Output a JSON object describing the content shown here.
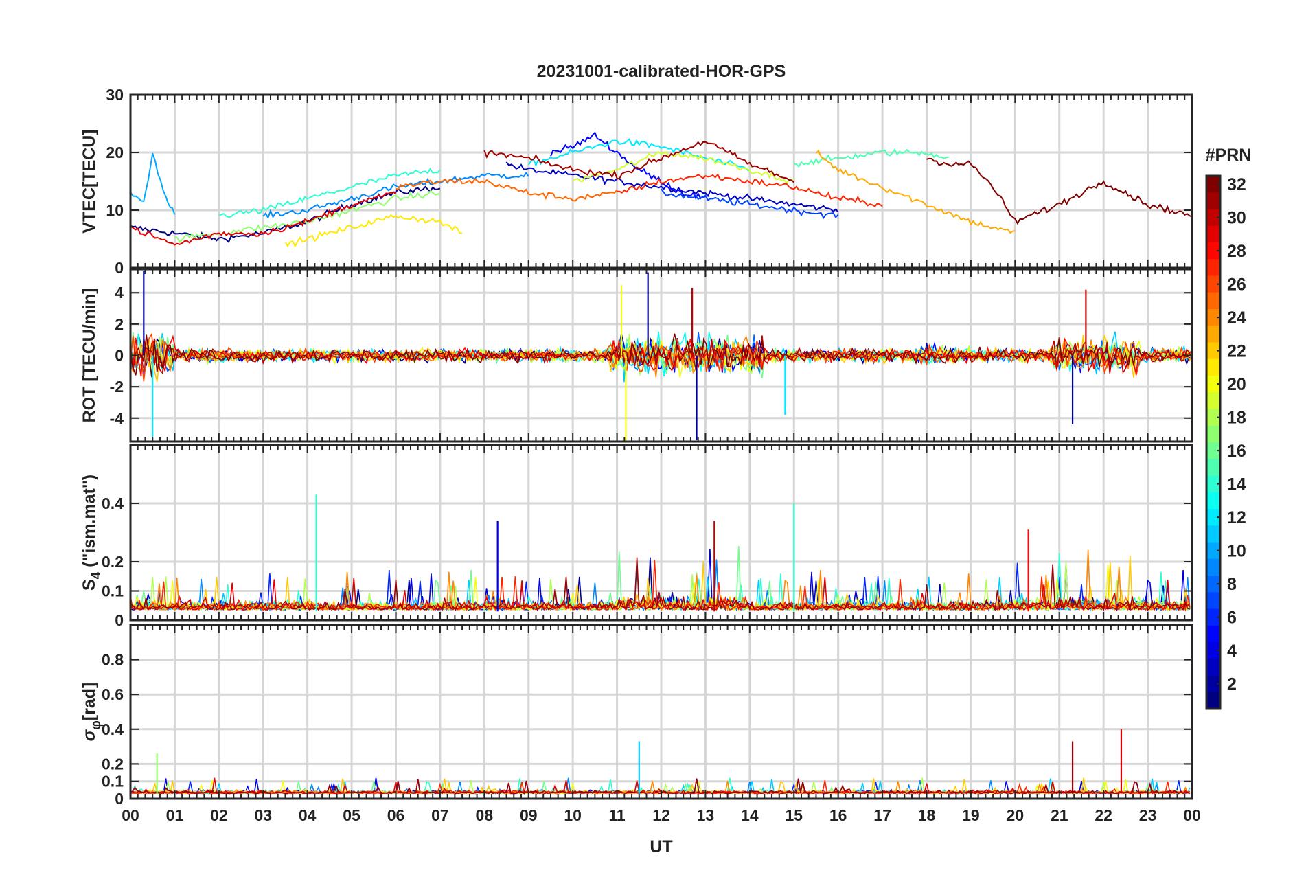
{
  "figure": {
    "title": "20231001-calibrated-HOR-GPS",
    "xlabel": "UT",
    "x_ticks": [
      "00",
      "01",
      "02",
      "03",
      "04",
      "05",
      "06",
      "07",
      "08",
      "09",
      "10",
      "11",
      "12",
      "13",
      "14",
      "15",
      "16",
      "17",
      "18",
      "19",
      "20",
      "21",
      "22",
      "23",
      "00"
    ]
  },
  "colorbar": {
    "label": "#PRN",
    "range": [
      1,
      32
    ],
    "ticks": [
      "2",
      "4",
      "6",
      "8",
      "10",
      "12",
      "14",
      "16",
      "18",
      "20",
      "22",
      "24",
      "26",
      "28",
      "30",
      "32"
    ],
    "colormap": "jet"
  },
  "chart_data": [
    {
      "type": "line",
      "panel": "vtec",
      "ylabel": "VTEC[TECU]",
      "ylim": [
        0,
        30
      ],
      "yticks": [
        "0",
        "10",
        "20",
        "30"
      ],
      "grid": true,
      "x_unit": "hours UT",
      "series": [
        {
          "prn": 1,
          "x": [
            0,
            1,
            2,
            3,
            4,
            5,
            6,
            7
          ],
          "y": [
            7,
            6,
            5,
            6,
            8,
            11,
            13,
            14
          ]
        },
        {
          "prn": 3,
          "x": [
            8.5,
            9,
            10,
            11,
            12,
            13,
            14,
            15,
            16
          ],
          "y": [
            18,
            17,
            16,
            15,
            14,
            13,
            12,
            11,
            10
          ]
        },
        {
          "prn": 5,
          "x": [
            9.5,
            10,
            10.5,
            11,
            11.5,
            12,
            12.5,
            13
          ],
          "y": [
            20,
            21,
            23,
            20,
            17,
            15,
            13,
            12
          ]
        },
        {
          "prn": 7,
          "x": [
            12,
            13,
            14,
            15,
            16
          ],
          "y": [
            13,
            12,
            11,
            10,
            9
          ]
        },
        {
          "prn": 9,
          "x": [
            3,
            4,
            5,
            6,
            7,
            8,
            9
          ],
          "y": [
            9,
            10,
            12,
            14,
            15,
            16,
            16
          ]
        },
        {
          "prn": 10,
          "x": [
            0,
            0.3,
            0.5,
            0.8,
            1
          ],
          "y": [
            13,
            11,
            20,
            12,
            9
          ]
        },
        {
          "prn": 12,
          "x": [
            9,
            10,
            11,
            12,
            13,
            14
          ],
          "y": [
            18,
            20,
            22,
            21,
            19,
            17
          ]
        },
        {
          "prn": 14,
          "x": [
            2,
            3,
            4,
            5,
            6,
            7
          ],
          "y": [
            9,
            10,
            12,
            14,
            16,
            17
          ]
        },
        {
          "prn": 15,
          "x": [
            15,
            16,
            17,
            18,
            18.5
          ],
          "y": [
            18,
            19,
            20,
            20,
            19
          ]
        },
        {
          "prn": 17,
          "x": [
            1,
            2,
            3,
            4,
            5,
            6,
            7
          ],
          "y": [
            5,
            6,
            7,
            8,
            10,
            12,
            13
          ]
        },
        {
          "prn": 19,
          "x": [
            10,
            11,
            12,
            13,
            14,
            15
          ],
          "y": [
            15,
            17,
            20,
            19,
            17,
            15
          ]
        },
        {
          "prn": 21,
          "x": [
            3.5,
            4,
            5,
            6,
            7,
            7.5
          ],
          "y": [
            4,
            5,
            7,
            9,
            8,
            6
          ]
        },
        {
          "prn": 23,
          "x": [
            15.5,
            16,
            17,
            18,
            19,
            20
          ],
          "y": [
            20,
            17,
            14,
            11,
            8,
            6
          ]
        },
        {
          "prn": 25,
          "x": [
            6,
            7,
            8,
            9,
            10,
            11
          ],
          "y": [
            14,
            15,
            15,
            13,
            12,
            13
          ]
        },
        {
          "prn": 27,
          "x": [
            11,
            12,
            13,
            14,
            15,
            16,
            17
          ],
          "y": [
            13,
            15,
            16,
            15,
            14,
            12,
            11
          ]
        },
        {
          "prn": 29,
          "x": [
            0,
            1,
            2,
            3,
            4,
            5,
            6
          ],
          "y": [
            7,
            4,
            6,
            6,
            8,
            11,
            13
          ]
        },
        {
          "prn": 31,
          "x": [
            8,
            9,
            10,
            11,
            12,
            13,
            14,
            15
          ],
          "y": [
            20,
            19,
            17,
            16,
            19,
            22,
            18,
            15
          ]
        },
        {
          "prn": 32,
          "x": [
            18,
            18.5,
            19,
            19.5,
            20,
            21,
            22,
            23,
            24
          ],
          "y": [
            19,
            18,
            18,
            14,
            8,
            11,
            15,
            11,
            9
          ]
        }
      ]
    },
    {
      "type": "line",
      "panel": "rot",
      "ylabel": "ROT [TECU/min]",
      "ylim": [
        -5.5,
        5.5
      ],
      "yticks": [
        "-4",
        "-2",
        "0",
        "2",
        "4"
      ],
      "grid": true,
      "x_unit": "hours UT",
      "summary": "noise around 0 TECU/min; bursts up to about ±5 near 00–01, 11–14 and 21–22 UT",
      "series": [
        {
          "prn": 2,
          "x": [
            0.3,
            11.7,
            12.8,
            21.3
          ],
          "y": [
            5.4,
            5.3,
            -5.4,
            -4.4
          ]
        },
        {
          "prn": 12,
          "x": [
            0.5,
            14.8
          ],
          "y": [
            -5.4,
            -3.8
          ]
        },
        {
          "prn": 20,
          "x": [
            11.1,
            11.2
          ],
          "y": [
            4.5,
            -5.5
          ]
        },
        {
          "prn": 30,
          "x": [
            12.7,
            21.6
          ],
          "y": [
            4.3,
            4.2
          ]
        }
      ]
    },
    {
      "type": "line",
      "panel": "s4",
      "ylabel": "S4 (\"ism.mat\")",
      "ylabel_parts": {
        "symbol": "S",
        "subscript": "4",
        "rest": " (\"ism.mat\")"
      },
      "ylim": [
        0,
        0.6
      ],
      "yticks": [
        "0",
        "0.1",
        "0.2",
        "0.4"
      ],
      "grid": true,
      "x_unit": "hours UT",
      "summary": "mostly 0.02–0.15 with spikes",
      "series": [
        {
          "prn": 14,
          "x": [
            4.2,
            15.0
          ],
          "y": [
            0.43,
            0.4
          ]
        },
        {
          "prn": 30,
          "x": [
            13.2
          ],
          "y": [
            0.34
          ]
        },
        {
          "prn": 4,
          "x": [
            8.3
          ],
          "y": [
            0.34
          ]
        },
        {
          "prn": 28,
          "x": [
            20.3
          ],
          "y": [
            0.31
          ]
        }
      ]
    },
    {
      "type": "line",
      "panel": "sigma_phi",
      "ylabel": "σφ[rad]",
      "ylabel_parts": {
        "symbol": "σ",
        "subscript": "φ",
        "rest": "[rad]"
      },
      "ylim": [
        0,
        1.0
      ],
      "yticks": [
        "0",
        "0.1",
        "0.2",
        "0.4",
        "0.6",
        "0.8"
      ],
      "grid": true,
      "x_unit": "hours UT",
      "summary": "mostly below 0.1 rad with spikes",
      "series": [
        {
          "prn": 29,
          "x": [
            22.4
          ],
          "y": [
            0.4
          ]
        },
        {
          "prn": 31,
          "x": [
            21.3
          ],
          "y": [
            0.33
          ]
        },
        {
          "prn": 11,
          "x": [
            11.5
          ],
          "y": [
            0.33
          ]
        },
        {
          "prn": 17,
          "x": [
            0.6
          ],
          "y": [
            0.26
          ]
        }
      ]
    }
  ]
}
